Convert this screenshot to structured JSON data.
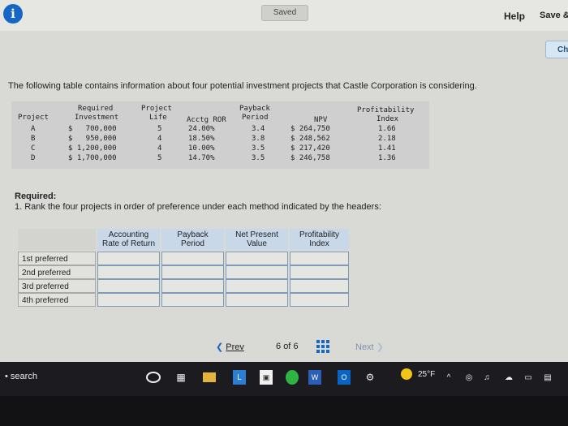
{
  "topbar": {
    "info_icon": "info-icon",
    "saved_label": "Saved",
    "help_label": "Help",
    "save_exit_label": "Save &",
    "check_label": "Ch"
  },
  "prompt": "The following table contains information about four potential investment projects that Castle Corporation is considering.",
  "data_table": {
    "headers": {
      "project": "Project",
      "required_1": "Required",
      "required_2": "Investment",
      "life_1": "Project",
      "life_2": "Life",
      "ror": "Acctg ROR",
      "payback_1": "Payback",
      "payback_2": "Period",
      "npv": "NPV",
      "pi_1": "Profitability",
      "pi_2": "Index"
    },
    "rows": [
      {
        "project": "A",
        "investment": "$   700,000",
        "life": "5",
        "ror": "24.00%",
        "payback": "3.4",
        "npv": "$ 264,750",
        "pi": "1.66"
      },
      {
        "project": "B",
        "investment": "$   950,000",
        "life": "4",
        "ror": "18.50%",
        "payback": "3.8",
        "npv": "$ 248,562",
        "pi": "2.18"
      },
      {
        "project": "C",
        "investment": "$ 1,200,000",
        "life": "4",
        "ror": "10.00%",
        "payback": "3.5",
        "npv": "$ 217,420",
        "pi": "1.41"
      },
      {
        "project": "D",
        "investment": "$ 1,700,000",
        "life": "5",
        "ror": "14.70%",
        "payback": "3.5",
        "npv": "$ 246,758",
        "pi": "1.36"
      }
    ]
  },
  "required": {
    "title": "Required:",
    "text": "1. Rank the four projects in order of preference under each method indicated by the headers:"
  },
  "answer_grid": {
    "columns": [
      {
        "l1": "Accounting",
        "l2": "Rate of Return"
      },
      {
        "l1": "Payback",
        "l2": "Period"
      },
      {
        "l1": "Net Present",
        "l2": "Value"
      },
      {
        "l1": "Profitability",
        "l2": "Index"
      }
    ],
    "rows": [
      "1st preferred",
      "2nd preferred",
      "3rd preferred",
      "4th preferred"
    ]
  },
  "pager": {
    "prev_label": "Prev",
    "page_current": "6",
    "page_of": "of",
    "page_total": "6",
    "next_label": "Next"
  },
  "taskbar": {
    "search_label": "search",
    "temp": "25°F"
  }
}
